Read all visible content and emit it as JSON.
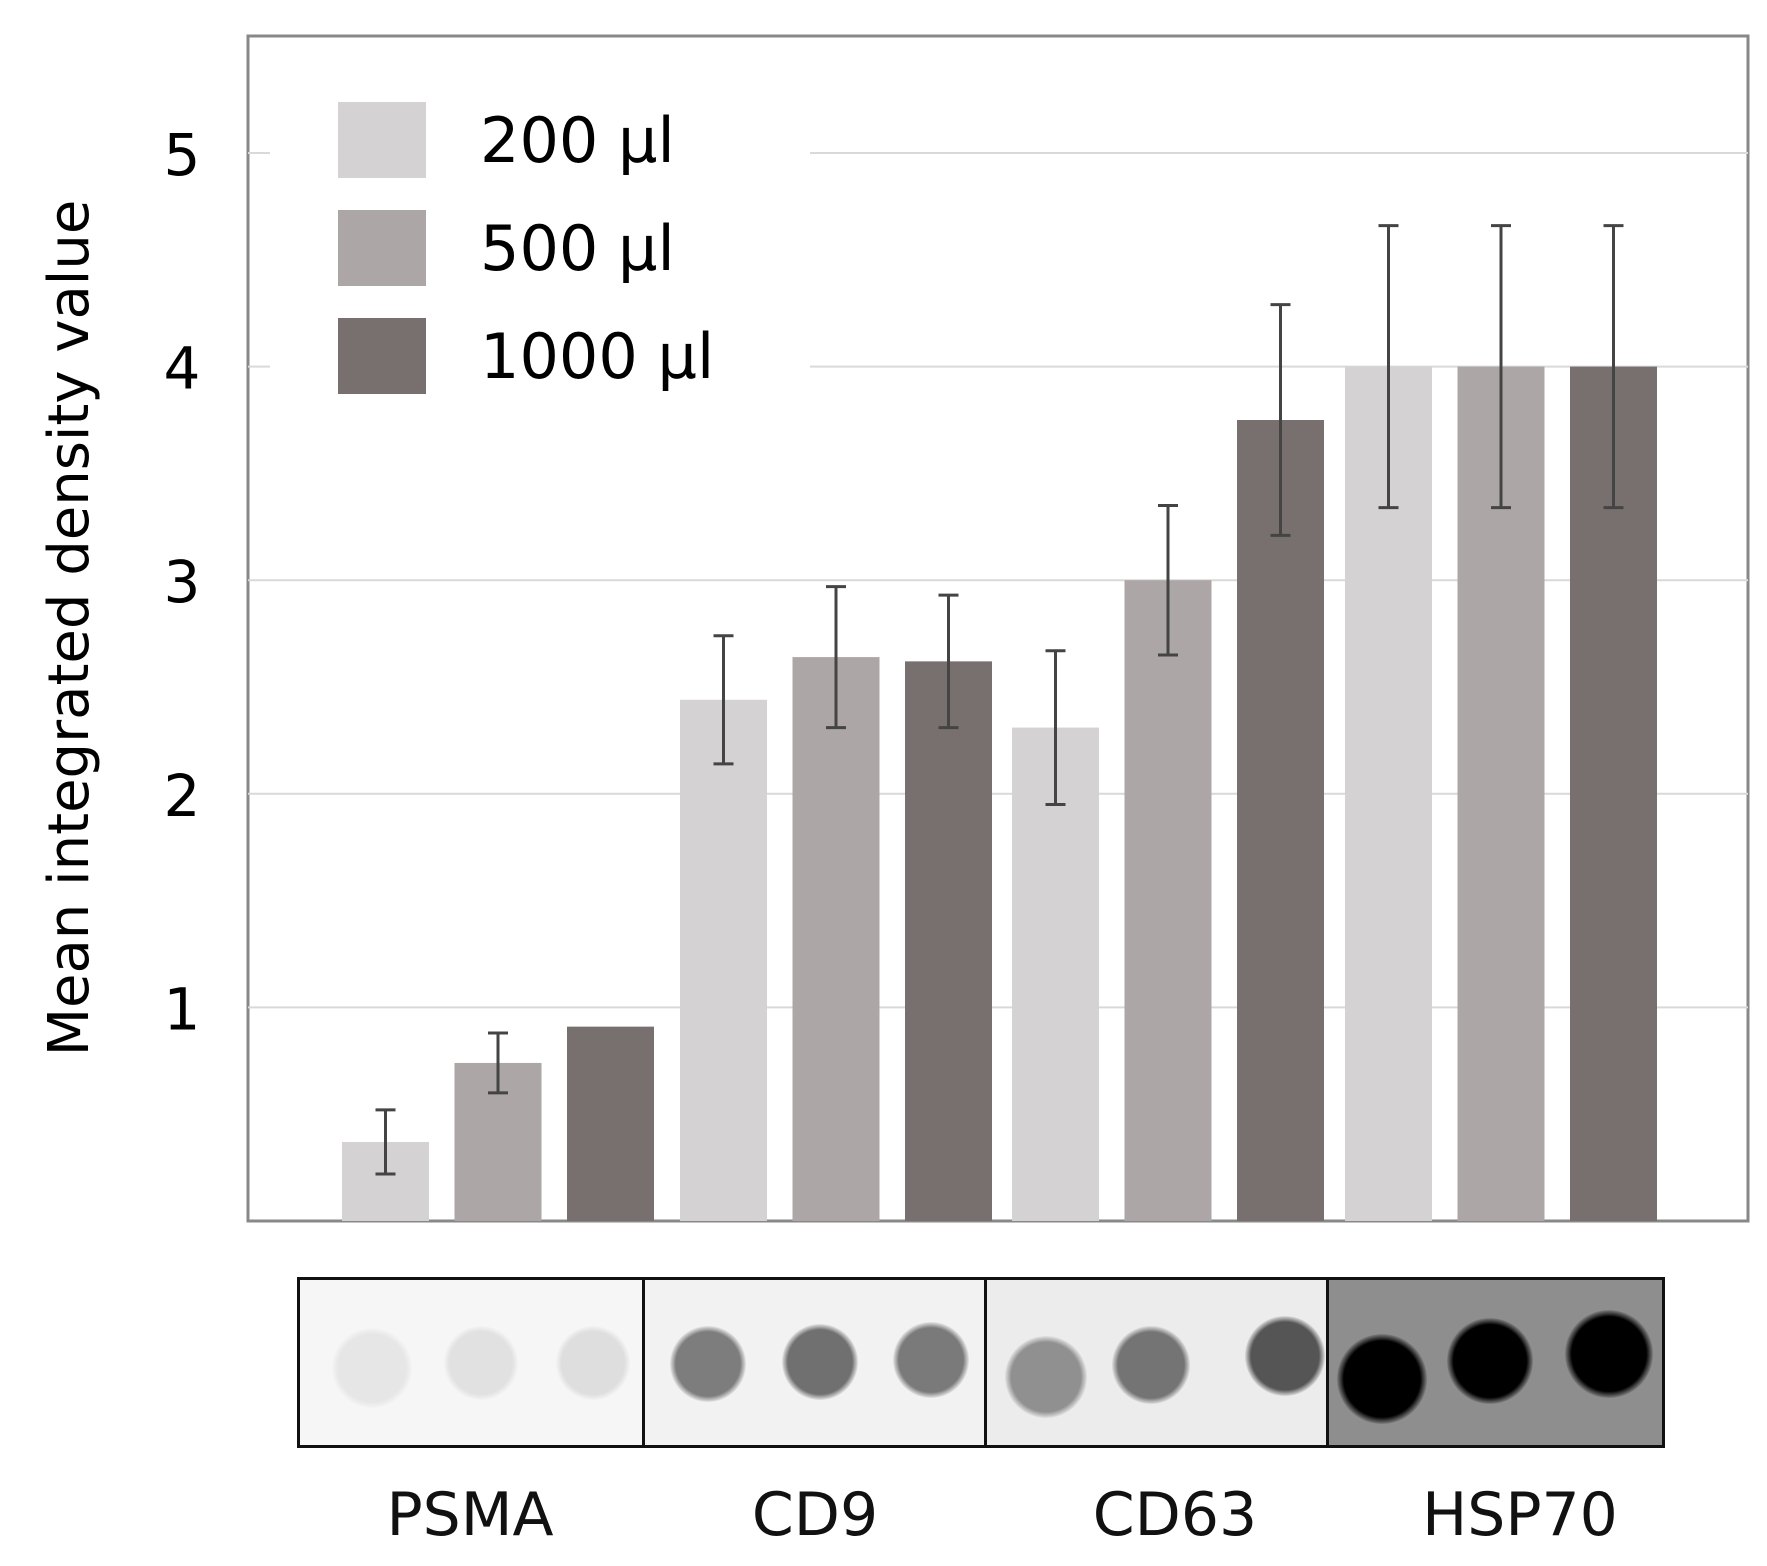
{
  "chart_data": {
    "type": "bar",
    "title": "",
    "xlabel": "",
    "ylabel": "Mean integrated density value",
    "ylim": [
      0,
      5.5
    ],
    "yticks": [
      1,
      2,
      3,
      4,
      5
    ],
    "grid": true,
    "legend_position": "top-left",
    "categories": [
      "PSMA",
      "CD9",
      "CD63",
      "HSP70"
    ],
    "series": [
      {
        "name": "200 µl",
        "color": "#d4d2d2",
        "values": [
          0.37,
          2.44,
          2.31,
          4.0
        ],
        "errors": [
          0.15,
          0.3,
          0.36,
          0.66
        ]
      },
      {
        "name": "500 µl",
        "color": "#aca6a6",
        "values": [
          0.74,
          2.64,
          3.0,
          4.0
        ],
        "errors": [
          0.14,
          0.33,
          0.35,
          0.66
        ]
      },
      {
        "name": "1000 µl",
        "color": "#78706e",
        "values": [
          0.91,
          2.62,
          3.75,
          4.0
        ],
        "errors": [
          0.0,
          0.31,
          0.54,
          0.66
        ]
      }
    ]
  },
  "blot": {
    "panels": [
      {
        "label": "PSMA",
        "background": "#f6f6f6",
        "dot_colors": [
          "#e6e6e6",
          "#e1e1e1",
          "#dedede"
        ]
      },
      {
        "label": "CD9",
        "background": "#f2f2f2",
        "dot_colors": [
          "#7d7d7d",
          "#707070",
          "#7a7a7a"
        ]
      },
      {
        "label": "CD63",
        "background": "#ececec",
        "dot_colors": [
          "#909090",
          "#747474",
          "#555555"
        ]
      },
      {
        "label": "HSP70",
        "background": "#8e8e8e",
        "dot_colors": [
          "#000000",
          "#000000",
          "#000000"
        ]
      }
    ]
  }
}
